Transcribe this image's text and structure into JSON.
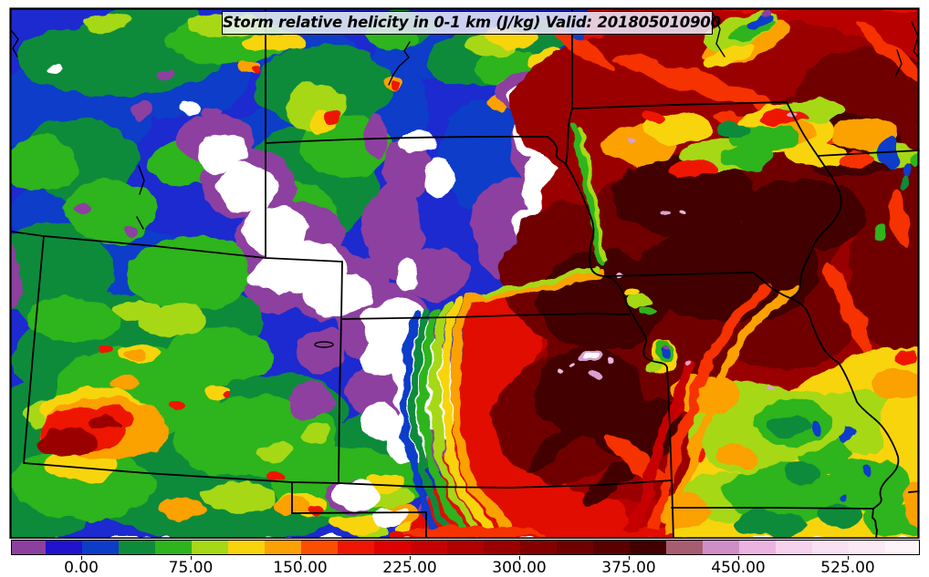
{
  "title": {
    "text": "Storm relative helicity in 0-1 km (J/kg) Valid: 201805010900"
  },
  "chart_data": {
    "type": "heatmap",
    "title": "Storm relative helicity in 0-1 km (J/kg) Valid: 201805010900",
    "variable": "Storm relative helicity in 0-1 km",
    "units": "J/kg",
    "valid_time": "201805010900",
    "legend_position": "bottom",
    "grid": false,
    "colorbar": {
      "orientation": "horizontal",
      "value_min": -50,
      "value_max": 575,
      "step": 25,
      "tick_values": [
        0,
        75,
        150,
        225,
        300,
        375,
        450,
        525
      ],
      "tick_labels": [
        "0.00",
        "75.00",
        "150.00",
        "225.00",
        "300.00",
        "375.00",
        "450.00",
        "525.00"
      ],
      "segments": [
        {
          "from": -50,
          "to": -25,
          "color": "#8d3f9f"
        },
        {
          "from": -25,
          "to": 0,
          "color": "#2012cf"
        },
        {
          "from": 0,
          "to": 25,
          "color": "#0d3cc9"
        },
        {
          "from": 25,
          "to": 50,
          "color": "#0e8b3a"
        },
        {
          "from": 50,
          "to": 75,
          "color": "#2eb41c"
        },
        {
          "from": 75,
          "to": 100,
          "color": "#a6d816"
        },
        {
          "from": 100,
          "to": 125,
          "color": "#f8d40c"
        },
        {
          "from": 125,
          "to": 150,
          "color": "#fba106"
        },
        {
          "from": 150,
          "to": 175,
          "color": "#fb4f00"
        },
        {
          "from": 175,
          "to": 200,
          "color": "#ee1600"
        },
        {
          "from": 200,
          "to": 225,
          "color": "#dd0200"
        },
        {
          "from": 225,
          "to": 250,
          "color": "#c60000"
        },
        {
          "from": 250,
          "to": 275,
          "color": "#b00000"
        },
        {
          "from": 275,
          "to": 300,
          "color": "#9a0000"
        },
        {
          "from": 300,
          "to": 325,
          "color": "#840000"
        },
        {
          "from": 325,
          "to": 350,
          "color": "#6f0000"
        },
        {
          "from": 350,
          "to": 375,
          "color": "#5a0000"
        },
        {
          "from": 375,
          "to": 400,
          "color": "#430000"
        },
        {
          "from": 400,
          "to": 425,
          "color": "#a85c72"
        },
        {
          "from": 425,
          "to": 450,
          "color": "#d08ec6"
        },
        {
          "from": 450,
          "to": 475,
          "color": "#ecb3e0"
        },
        {
          "from": 475,
          "to": 500,
          "color": "#f7d2ee"
        },
        {
          "from": 500,
          "to": 525,
          "color": "#f9e0f2"
        },
        {
          "from": 525,
          "to": 550,
          "color": "#fbeaf6"
        },
        {
          "from": 550,
          "to": 575,
          "color": "#fdf4fa"
        }
      ]
    }
  }
}
